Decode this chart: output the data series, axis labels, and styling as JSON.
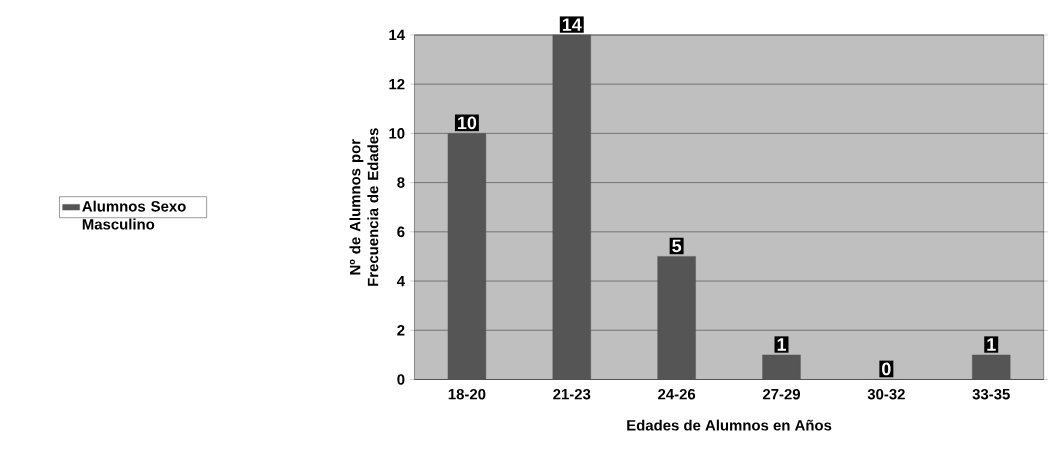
{
  "chart_data": {
    "type": "bar",
    "xlabel": "Edades de Alumnos en Años",
    "ylabel": "Nº de Alumnos por Frecuencia de Edades",
    "categories": [
      "18-20",
      "21-23",
      "24-26",
      "27-29",
      "30-32",
      "33-35"
    ],
    "series": [
      {
        "name": "Alumnos Sexo Masculino",
        "color": "#555555",
        "values": [
          10,
          14,
          5,
          1,
          0,
          1
        ]
      }
    ],
    "ylim": [
      0,
      14
    ],
    "yticks": [
      0,
      2,
      4,
      6,
      8,
      10,
      12,
      14
    ],
    "grid": "y",
    "legend": "left",
    "data_labels": true
  }
}
